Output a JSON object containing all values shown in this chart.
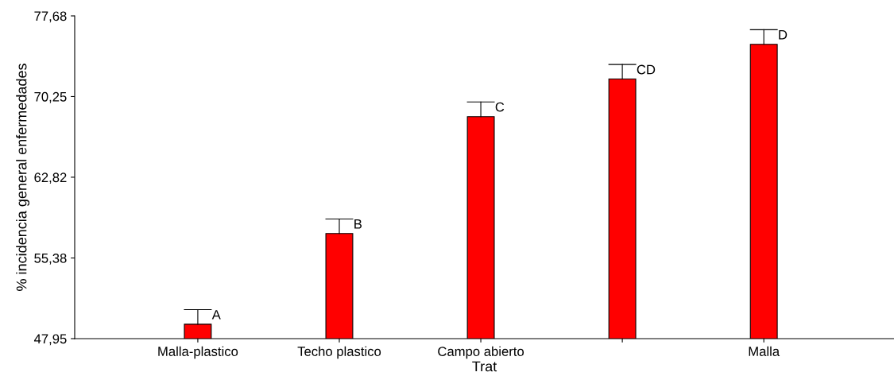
{
  "chart_data": {
    "type": "bar",
    "xlabel": "Trat",
    "ylabel": "% incidencia general enfermedades",
    "categories": [
      "Malla-plastico",
      "Techo plastico",
      "Campo abierto",
      null,
      "Malla"
    ],
    "values": [
      49.28,
      57.63,
      68.4,
      71.88,
      75.06
    ],
    "errors": [
      [
        49.28,
        50.62
      ],
      [
        57.63,
        58.97
      ],
      [
        68.4,
        69.75
      ],
      [
        71.88,
        73.2
      ],
      [
        75.06,
        76.41
      ]
    ],
    "value_labels": [
      "A",
      "B",
      "C",
      "CD",
      "D"
    ],
    "color": "#ff0000",
    "ylim": [
      47.95,
      77.68
    ],
    "yticks": [
      {
        "value": 47.95,
        "label": "47,95"
      },
      {
        "value": 55.38,
        "label": "55,38"
      },
      {
        "value": 62.82,
        "label": "62,82"
      },
      {
        "value": 70.25,
        "label": "70,25"
      },
      {
        "value": 77.68,
        "label": "77,68"
      }
    ],
    "grid": false,
    "legend": false
  }
}
